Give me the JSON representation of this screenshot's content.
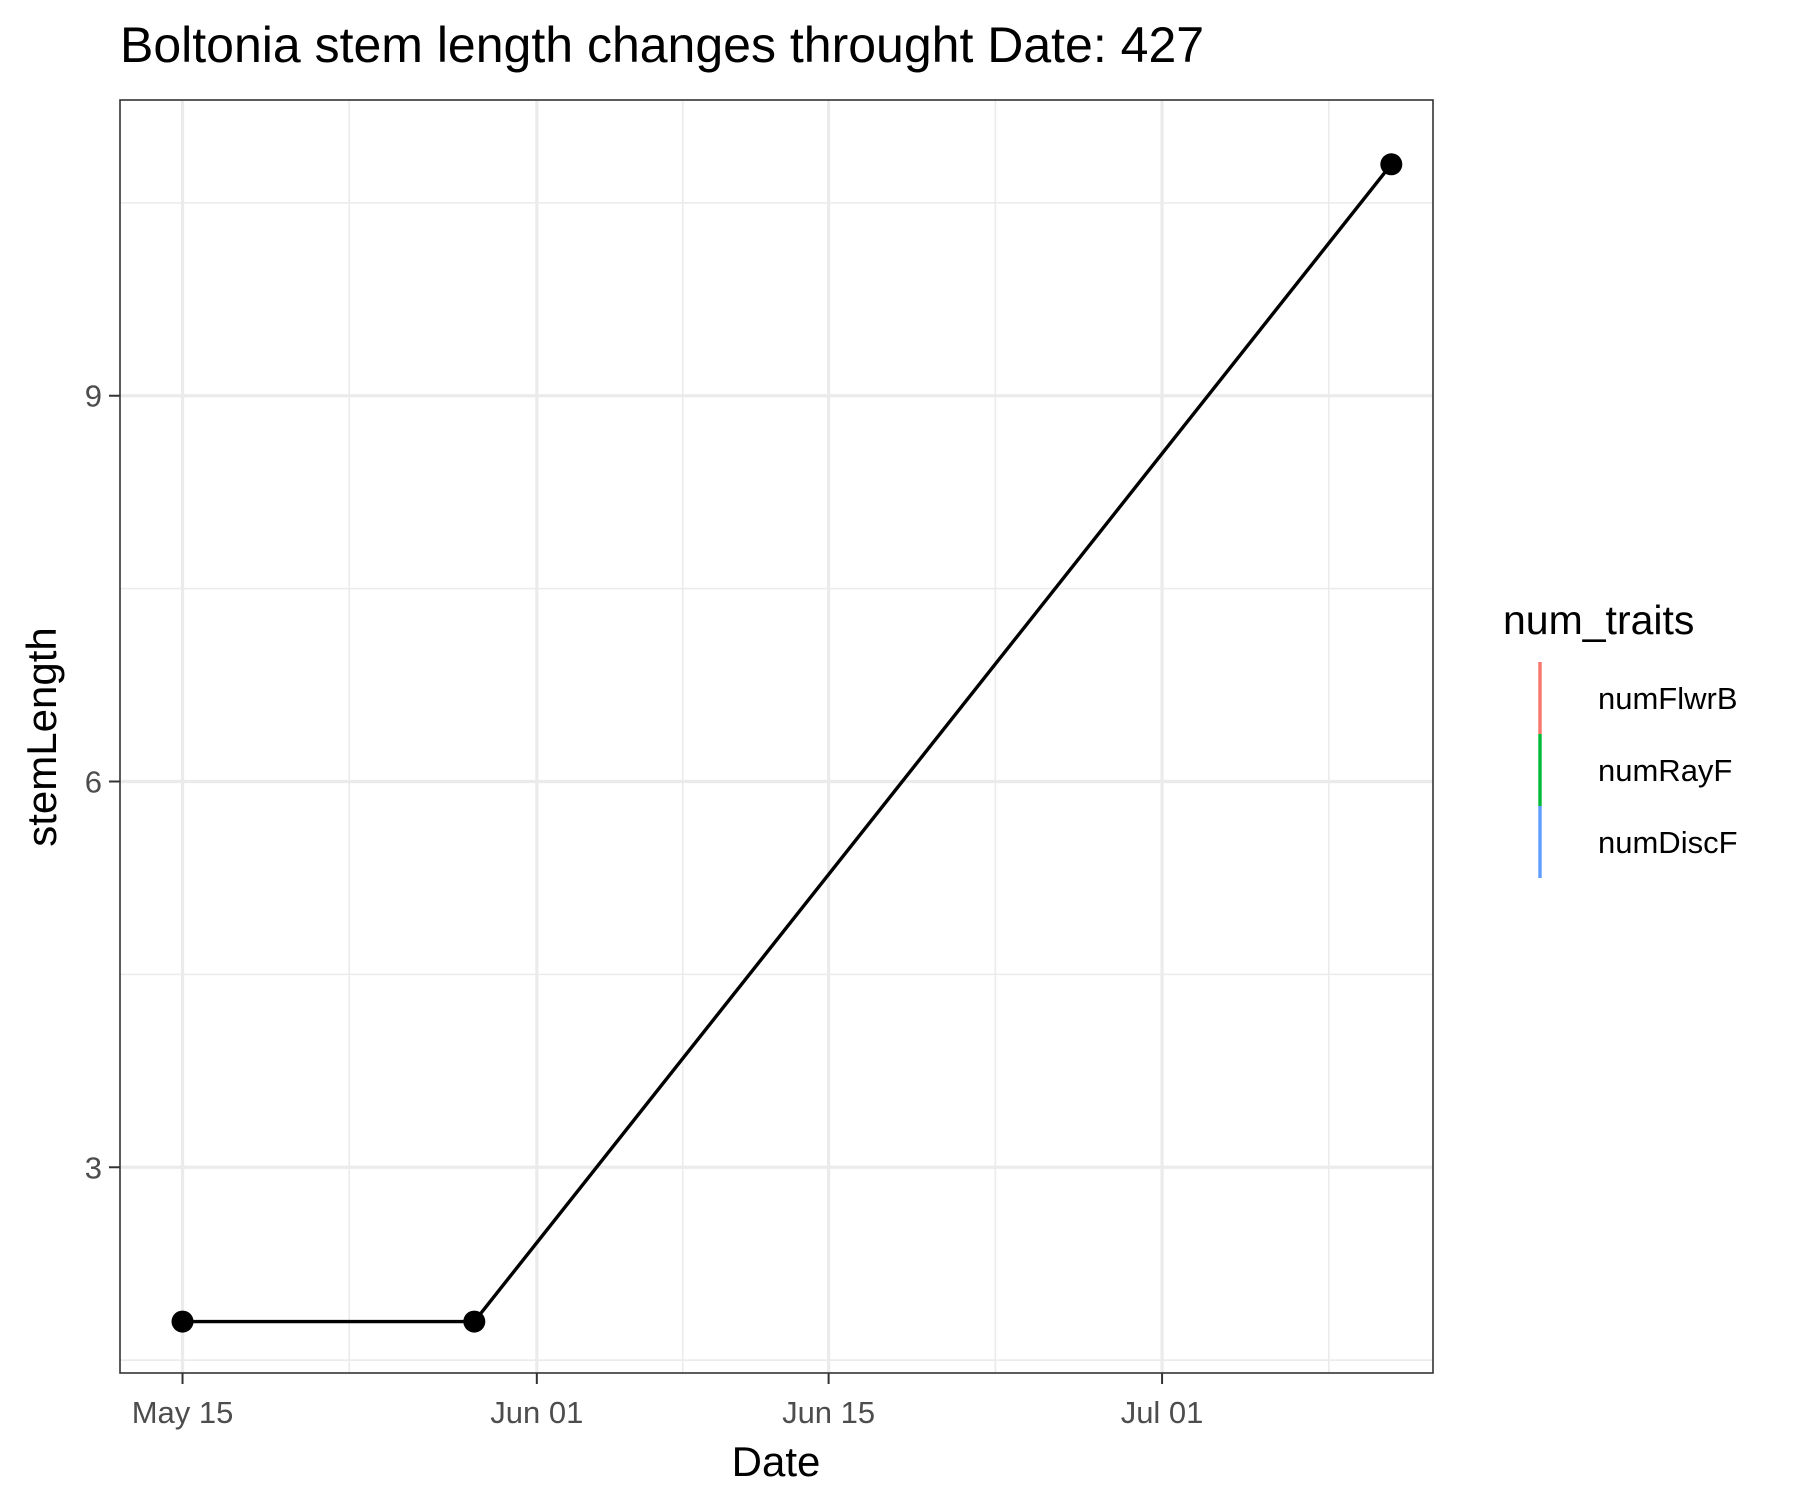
{
  "chart_data": {
    "type": "line",
    "title": "Boltonia stem length changes throught Date:  427",
    "xlabel": "Date",
    "ylabel": "stemLength",
    "x_type": "date",
    "x_ticks": [
      {
        "date": "2021-05-15",
        "label": "May 15"
      },
      {
        "date": "2021-06-01",
        "label": "Jun 01"
      },
      {
        "date": "2021-06-15",
        "label": "Jun 15"
      },
      {
        "date": "2021-07-01",
        "label": "Jul 01"
      }
    ],
    "x_minor": [
      "2021-05-23",
      "2021-06-08",
      "2021-06-23",
      "2021-07-09"
    ],
    "xlim": [
      "2021-05-12",
      "2021-07-14"
    ],
    "y_ticks": [
      3,
      6,
      9
    ],
    "y_minor": [
      1.5,
      4.5,
      7.5,
      10.5
    ],
    "ylim": [
      1.4,
      11.3
    ],
    "grid": true,
    "series": [
      {
        "color": "#000000",
        "points": [
          {
            "x": "2021-05-15",
            "y": 1.8
          },
          {
            "x": "2021-05-29",
            "y": 1.8
          },
          {
            "x": "2021-07-12",
            "y": 10.8
          }
        ]
      }
    ],
    "legend": {
      "title": "num_traits",
      "position": "right",
      "items": [
        {
          "label": "numFlwrB",
          "color": "#F8766D"
        },
        {
          "label": "numRayF",
          "color": "#00BA38"
        },
        {
          "label": "numDiscF",
          "color": "#619CFF"
        }
      ]
    }
  }
}
